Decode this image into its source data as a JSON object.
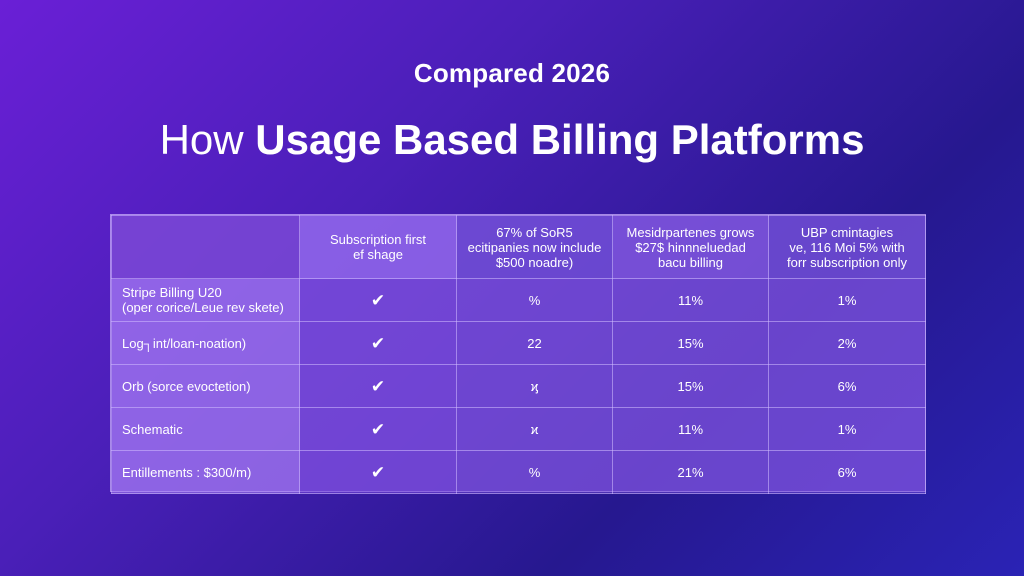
{
  "kicker": "Compared 2026",
  "headline": {
    "light": "How",
    "bold": "Usage Based Billing Platforms"
  },
  "table": {
    "headers": [
      "",
      "Subscription first\nef shage",
      "67% of SoR5\necitipanies now include\n$500 noadre)",
      "Mesidrpartenes grows\n$27$ hinnneluedad\nbacu billing",
      "UBP cmintagies\nve, 116 Moi 5% with\nforr subscription only"
    ],
    "rows": [
      {
        "name": "Stripe Billing U20\n(oper corice/Leue rev skete)",
        "check": "✔",
        "c2": "%",
        "c3": "11%",
        "c4": "1%"
      },
      {
        "name": "Log┐int/loan-noation)",
        "check": "✔",
        "c2": "22",
        "c3": "15%",
        "c4": "2%"
      },
      {
        "name": "Orb (sorce evoctetion)",
        "check": "✔",
        "c2": "ϗ",
        "c3": "15%",
        "c4": "6%"
      },
      {
        "name": "Schematic",
        "check": "✔",
        "c2": "ϰ",
        "c3": "11%",
        "c4": "1%"
      },
      {
        "name": "Entillements : $300/m)",
        "check": "✔",
        "c2": "%",
        "c3": "21%",
        "c4": "6%"
      }
    ]
  }
}
